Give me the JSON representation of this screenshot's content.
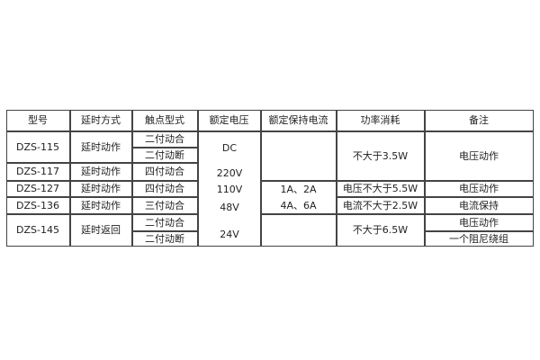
{
  "headers": [
    "型号",
    "延时方式",
    "触点型式",
    "额定电压",
    "额定保持电流",
    "功率消耗",
    "备注"
  ],
  "models": [
    "DZS-115",
    "DZS-117",
    "DZS-127",
    "DZS-136",
    "DZS-145"
  ],
  "delay_modes": [
    "延时动作",
    "延时动作",
    "延时动作",
    "延时动作",
    "延时返回"
  ],
  "contacts": [
    "二付动合",
    "二付动断",
    "四付动合",
    "四付动合",
    "三付动合",
    "二付动合",
    "二付动断"
  ],
  "voltage": [
    "DC",
    "220V",
    "110V",
    "48V",
    "24V"
  ],
  "holding_current": [
    "1A、2A",
    "4A、6A"
  ],
  "power": [
    "不大于3.5W",
    "电压不大于5.5W",
    "电流不大于2.5W",
    "不大于6.5W"
  ],
  "remarks": [
    "电压动作",
    "电压动作",
    "电流保持",
    "电压动作",
    "一个阻尼绕组"
  ]
}
